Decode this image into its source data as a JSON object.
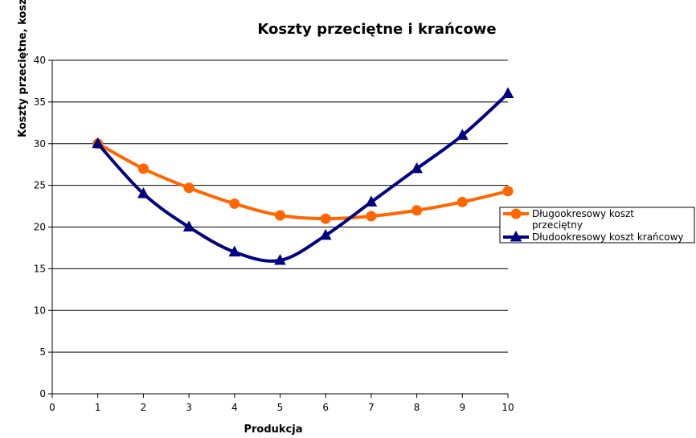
{
  "chart_data": {
    "type": "line",
    "title": "Koszty przeciętne i krańcowe",
    "xlabel": "Produkcja",
    "ylabel": "Koszty przeciętne, koszt krańcowy",
    "xlim": [
      0,
      10
    ],
    "ylim": [
      0,
      40
    ],
    "x_ticks": [
      0,
      1,
      2,
      3,
      4,
      5,
      6,
      7,
      8,
      9,
      10
    ],
    "y_ticks": [
      0,
      5,
      10,
      15,
      20,
      25,
      30,
      35,
      40
    ],
    "grid": "horizontal",
    "legend_position": "right",
    "x": [
      1,
      2,
      3,
      4,
      5,
      6,
      7,
      8,
      9,
      10
    ],
    "series": [
      {
        "name": "Długookresowy koszt przeciętny",
        "name_lines": [
          "Długookresowy koszt",
          "przeciętny"
        ],
        "color": "#FF6600",
        "marker": "circle",
        "values": [
          30,
          27,
          24.7,
          22.8,
          21.4,
          21,
          21.3,
          22,
          23,
          24.3
        ]
      },
      {
        "name": "Dłudookresowy koszt krańcowy",
        "name_lines": [
          "Dłudookresowy koszt krańcowy"
        ],
        "color": "#000080",
        "marker": "triangle",
        "values": [
          30,
          24,
          20,
          17,
          16,
          19,
          23,
          27,
          31,
          36
        ]
      }
    ]
  }
}
